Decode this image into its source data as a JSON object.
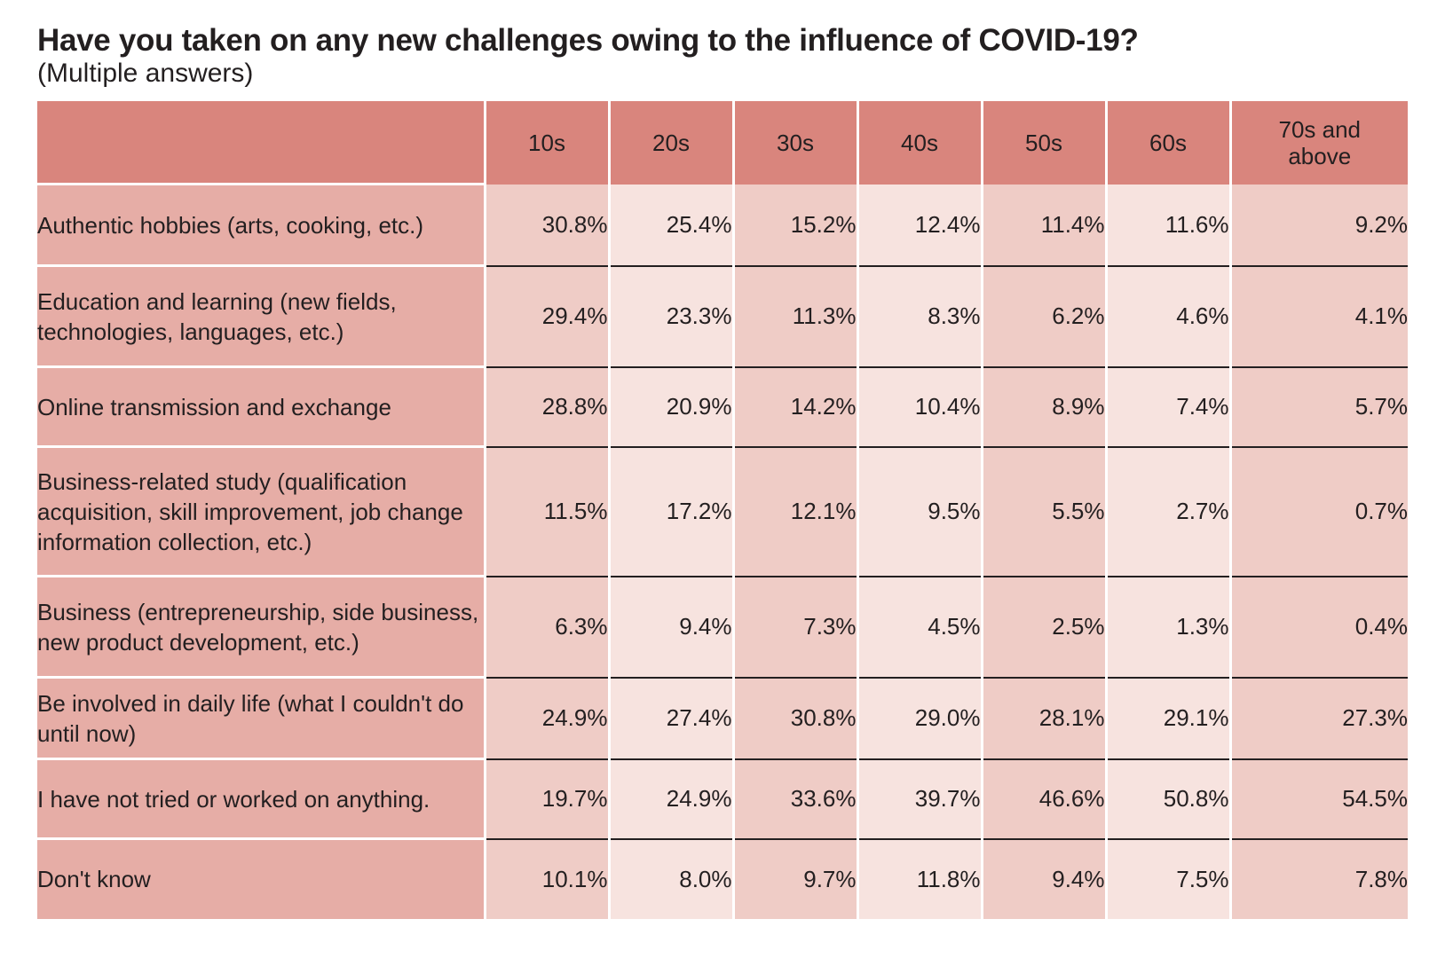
{
  "header": {
    "title": "Have you taken on any new challenges owing to the influence of COVID-19?",
    "subtitle": "(Multiple answers)"
  },
  "colors": {
    "header_bg": "#d9857d",
    "label_bg": "#e6ada6",
    "cell_dark": "#efccc6",
    "cell_light": "#f7e3df"
  },
  "chart_data": {
    "type": "table",
    "title": "Have you taken on any new challenges owing to the influence of COVID-19?",
    "subtitle": "(Multiple answers)",
    "columns": [
      "10s",
      "20s",
      "30s",
      "40s",
      "50s",
      "60s",
      "70s and above"
    ],
    "rows": [
      {
        "label": "Authentic hobbies (arts, cooking, etc.)",
        "values": [
          "30.8%",
          "25.4%",
          "15.2%",
          "12.4%",
          "11.4%",
          "11.6%",
          "9.2%"
        ]
      },
      {
        "label": "Education and learning (new fields, technologies, languages, etc.)",
        "values": [
          "29.4%",
          "23.3%",
          "11.3%",
          "8.3%",
          "6.2%",
          "4.6%",
          "4.1%"
        ]
      },
      {
        "label": "Online transmission and exchange",
        "values": [
          "28.8%",
          "20.9%",
          "14.2%",
          "10.4%",
          "8.9%",
          "7.4%",
          "5.7%"
        ]
      },
      {
        "label": "Business-related study (qualification acquisition, skill improvement, job change information collection, etc.)",
        "values": [
          "11.5%",
          "17.2%",
          "12.1%",
          "9.5%",
          "5.5%",
          "2.7%",
          "0.7%"
        ]
      },
      {
        "label": "Business (entrepreneurship, side business, new product development, etc.)",
        "values": [
          "6.3%",
          "9.4%",
          "7.3%",
          "4.5%",
          "2.5%",
          "1.3%",
          "0.4%"
        ]
      },
      {
        "label": "Be involved in daily life (what I couldn't do until now)",
        "values": [
          "24.9%",
          "27.4%",
          "30.8%",
          "29.0%",
          "28.1%",
          "29.1%",
          "27.3%"
        ]
      },
      {
        "label": "I have not tried or worked on anything.",
        "values": [
          "19.7%",
          "24.9%",
          "33.6%",
          "39.7%",
          "46.6%",
          "50.8%",
          "54.5%"
        ]
      },
      {
        "label": "Don't know",
        "values": [
          "10.1%",
          "8.0%",
          "9.7%",
          "11.8%",
          "9.4%",
          "7.5%",
          "7.8%"
        ]
      }
    ]
  }
}
